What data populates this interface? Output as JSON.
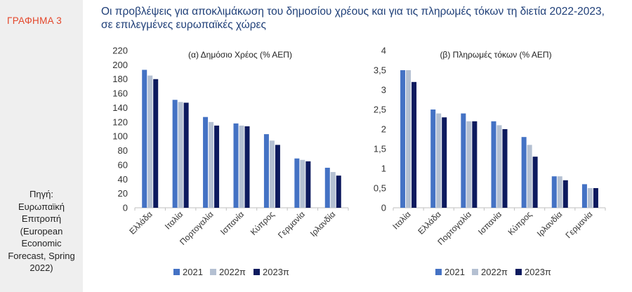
{
  "figure_label": "ΓΡΑΦΗΜΑ 3",
  "title_line1": "Οι προβλέψεις για αποκλιμάκωση του δημοσίου χρέους και για τις πληρωμές τόκων τη διετία 2022-2023,",
  "title_line2": "σε επιλεγμένες ευρωπαϊκές χώρες",
  "source_lines": [
    "Πηγή:",
    "Ευρωπαϊκή",
    "Επιτροπή",
    "(European",
    "Economic",
    "Forecast, Spring",
    "2022)"
  ],
  "colors": {
    "label": "#e4462a",
    "title": "#1f3f78",
    "s2021": "#4472c4",
    "s2022": "#b4c0d2",
    "s2023": "#0d1a5e",
    "sidebar": "#efefef"
  },
  "chart_data": [
    {
      "type": "bar",
      "title": "(α) Δημόσιο Χρέος (% ΑΕΠ)",
      "categories": [
        "Ελλάδα",
        "Ιταλία",
        "Πορτογαλία",
        "Ισπανία",
        "Κύπρος",
        "Γερμανία",
        "Ιρλανδία"
      ],
      "series": [
        {
          "name": "2021",
          "values": [
            193,
            151,
            127,
            118,
            103,
            69,
            56
          ]
        },
        {
          "name": "2022π",
          "values": [
            185,
            148,
            120,
            115,
            94,
            67,
            50
          ]
        },
        {
          "name": "2023π",
          "values": [
            180,
            147,
            115,
            114,
            88,
            65,
            45
          ]
        }
      ],
      "ylim": [
        0,
        220
      ],
      "yticks": [
        0,
        20,
        40,
        60,
        80,
        100,
        120,
        140,
        160,
        180,
        200,
        220
      ],
      "ytick_labels": [
        "0",
        "20",
        "40",
        "60",
        "80",
        "100",
        "120",
        "140",
        "160",
        "180",
        "200",
        "220"
      ],
      "legend": "bottom",
      "grid": false
    },
    {
      "type": "bar",
      "title": "(β) Πληρωμές τόκων (% ΑΕΠ)",
      "categories": [
        "Ιταλία",
        "Ελλάδα",
        "Πορτογαλία",
        "Ισπανία",
        "Κύπρος",
        "Ιρλανδία",
        "Γερμανία"
      ],
      "series": [
        {
          "name": "2021",
          "values": [
            3.5,
            2.5,
            2.4,
            2.2,
            1.8,
            0.8,
            0.6
          ]
        },
        {
          "name": "2022π",
          "values": [
            3.5,
            2.4,
            2.2,
            2.1,
            1.6,
            0.8,
            0.5
          ]
        },
        {
          "name": "2023π",
          "values": [
            3.2,
            2.3,
            2.2,
            2.0,
            1.3,
            0.7,
            0.5
          ]
        }
      ],
      "ylim": [
        0,
        4
      ],
      "yticks": [
        0,
        0.5,
        1,
        1.5,
        2,
        2.5,
        3,
        3.5,
        4
      ],
      "ytick_labels": [
        "0",
        "0,5",
        "1",
        "1,5",
        "2",
        "2,5",
        "3",
        "3,5",
        "4"
      ],
      "legend": "bottom",
      "grid": false
    }
  ]
}
